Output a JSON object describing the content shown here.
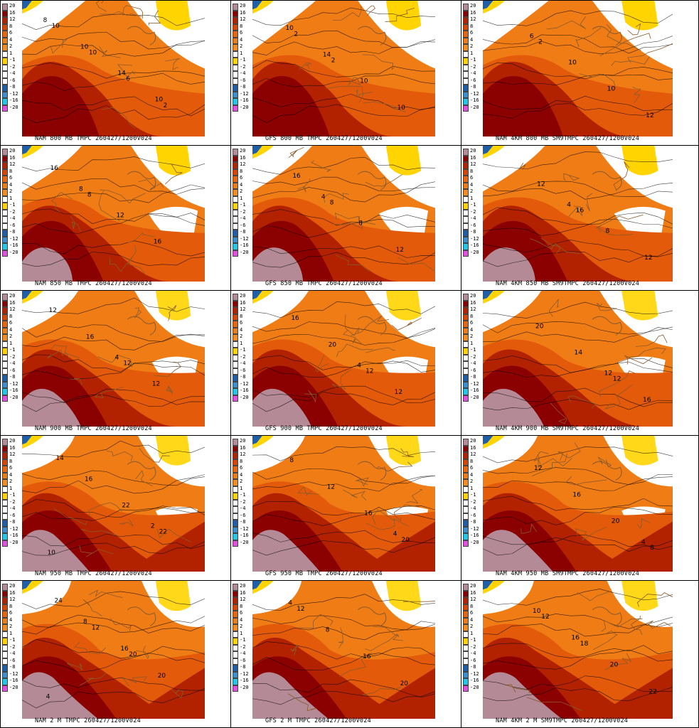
{
  "legend": {
    "labels": [
      "20",
      "16",
      "12",
      "8",
      "6",
      "4",
      "2",
      "1",
      "-1",
      "-2",
      "-4",
      "-6",
      "-8",
      "-12",
      "-16",
      "-20"
    ],
    "colors": [
      "#b48a96",
      "#8b0000",
      "#b22200",
      "#d94400",
      "#e8660f",
      "#f07c16",
      "#f58c20",
      "#ffffff",
      "#ffd400",
      "#ffffff",
      "#ffffff",
      "#ffffff",
      "#1f5fa8",
      "#3a8fd0",
      "#22c8e8",
      "#e050e0"
    ]
  },
  "colors": {
    "warm_base": "#f07c16",
    "warm_mid": "#e35a0a",
    "hot": "#b22200",
    "very_hot": "#8b0000",
    "extreme": "#b48a96",
    "cold_yellow": "#ffd400",
    "boundary": "#8b5a2b",
    "contour": "#000000"
  },
  "panels": [
    {
      "title": "NAM 800 MB TMPC 260427/1200V024",
      "labels": [
        "8",
        "10",
        "14",
        "10",
        "10",
        "10",
        "6",
        "2"
      ]
    },
    {
      "title": "GFS 800 MB TMPC 260427/1200V024",
      "labels": [
        "10",
        "14",
        "10",
        "10",
        "2",
        "2"
      ]
    },
    {
      "title": "NAM 4KM 800 MB SM9TMPC 260427/1200V024",
      "labels": [
        "6",
        "10",
        "10",
        "12",
        "2"
      ]
    },
    {
      "title": "NAM 850 MB TMPC 260427/1200V024",
      "labels": [
        "8",
        "12",
        "16",
        "16",
        "8"
      ]
    },
    {
      "title": "GFS 850 MB TMPC 260427/1200V024",
      "labels": [
        "4",
        "8",
        "12",
        "16",
        "8"
      ]
    },
    {
      "title": "NAM 4KM 850 MB SM9TMPC 260427/1200V024",
      "labels": [
        "4",
        "8",
        "12",
        "12",
        "16"
      ]
    },
    {
      "title": "NAM 900 MB TMPC 260427/1200V024",
      "labels": [
        "4",
        "12",
        "12",
        "16",
        "12"
      ]
    },
    {
      "title": "GFS 900 MB TMPC 260427/1200V024",
      "labels": [
        "4",
        "12",
        "16",
        "20",
        "12"
      ]
    },
    {
      "title": "NAM 4KM 900 MB SM9TMPC 260427/1200V024",
      "labels": [
        "12",
        "16",
        "20",
        "14",
        "12"
      ]
    },
    {
      "title": "NAM 950 MB TMPC 260427/1200V024",
      "labels": [
        "2",
        "10",
        "16",
        "22",
        "22",
        "14"
      ]
    },
    {
      "title": "GFS 950 MB TMPC 260427/1200V024",
      "labels": [
        "4",
        "8",
        "12",
        "16",
        "20"
      ]
    },
    {
      "title": "NAM 4KM 950 MB SM9TMPC 260427/1200V024",
      "labels": [
        "4",
        "12",
        "16",
        "20",
        "8"
      ]
    },
    {
      "title": "NAM 2 M TMPC 260427/1200V024",
      "labels": [
        "4",
        "8",
        "16",
        "20",
        "24",
        "12",
        "20"
      ]
    },
    {
      "title": "GFS 2 M TMPC 260427/1200V024",
      "labels": [
        "4",
        "8",
        "16",
        "20",
        "12"
      ]
    },
    {
      "title": "NAM 4KM 2 M SM9TMPC 260427/1200V024",
      "labels": [
        "10",
        "16",
        "20",
        "22",
        "12",
        "18"
      ]
    }
  ]
}
